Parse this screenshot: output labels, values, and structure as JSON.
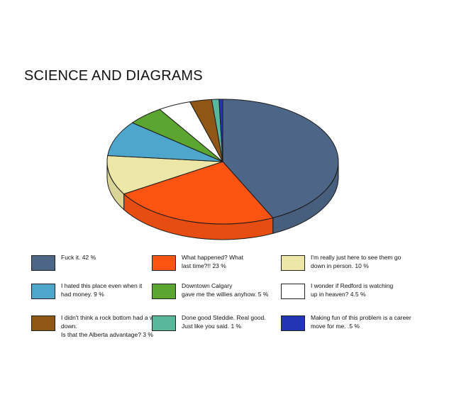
{
  "chart_data": {
    "type": "pie",
    "title": "SCIENCE AND DIAGRAMS",
    "slices": [
      {
        "label": "Fuck it. 42 %",
        "value": 42,
        "color": "#4d6688"
      },
      {
        "label": "What happened? What\nlast time?!!  23 %",
        "value": 23,
        "color": "#fb5311"
      },
      {
        "label": "I'm really just here to see them go\ndown in person.  10 %",
        "value": 10,
        "color": "#ece7a6"
      },
      {
        "label": "I hated this place even when it\nhad money.  9 %",
        "value": 9,
        "color": "#4ea6cc"
      },
      {
        "label": "Downtown Calgary\ngave me the willies anyhow.  5 %",
        "value": 5,
        "color": "#5da531"
      },
      {
        "label": "I wonder if Redford is watching\nup in heaven?    4.5 %",
        "value": 4.5,
        "color": "#ffffff"
      },
      {
        "label": "I didn't think a rock bottom had a way down.\nIs that the Alberta advantage? 3 %",
        "value": 3,
        "color": "#8f5616"
      },
      {
        "label": "Done good Steddie. Real good.\nJust like you said. 1 %",
        "value": 1,
        "color": "#58b89c"
      },
      {
        "label": "Making fun of this problem is a career\nmove for me.  .5 %",
        "value": 0.5,
        "color": "#2236b4"
      }
    ],
    "legend": {
      "placement": "bottom",
      "order": [
        0,
        3,
        6,
        1,
        4,
        7,
        2,
        5,
        8
      ]
    }
  }
}
